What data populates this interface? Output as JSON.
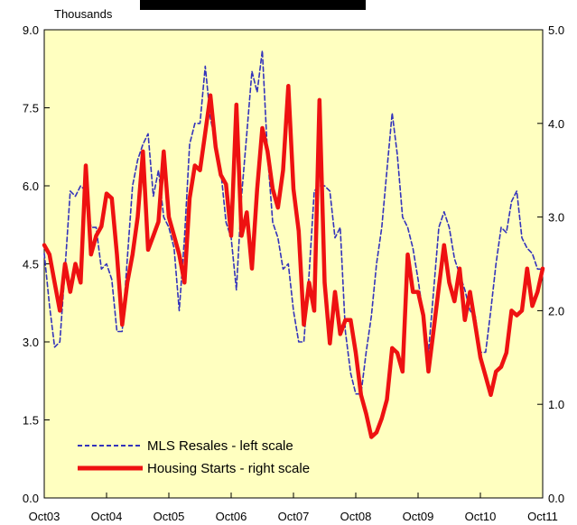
{
  "chart_data": {
    "type": "line",
    "left_axis_unit_label": "Thousands",
    "left_axis": {
      "min": 0,
      "max": 9,
      "ticks": [
        "0.0",
        "1.5",
        "3.0",
        "4.5",
        "6.0",
        "7.5",
        "9.0"
      ]
    },
    "right_axis": {
      "min": 0,
      "max": 5,
      "ticks": [
        "0.0",
        "1.0",
        "2.0",
        "3.0",
        "4.0",
        "5.0"
      ]
    },
    "x_ticks": [
      "Oct03",
      "Oct04",
      "Oct05",
      "Oct06",
      "Oct07",
      "Oct08",
      "Oct09",
      "Oct10",
      "Oct11"
    ],
    "x_start": "Oct03",
    "x_end": "Oct11",
    "plot_background": "#ffffc0",
    "legend_position": "bottom-left",
    "series": [
      {
        "name": "MLS Resales - left scale",
        "axis": "left",
        "color": "#3333bb",
        "style": "dashed",
        "points": [
          [
            "Oct03",
            4.7
          ],
          [
            "Nov03",
            3.7
          ],
          [
            "Dec03",
            2.9
          ],
          [
            "Jan04",
            3.0
          ],
          [
            "Feb04",
            4.4
          ],
          [
            "Mar04",
            5.9
          ],
          [
            "Apr04",
            5.8
          ],
          [
            "May04",
            6.0
          ],
          [
            "Jun04",
            5.9
          ],
          [
            "Jul04",
            5.2
          ],
          [
            "Aug04",
            5.2
          ],
          [
            "Sep04",
            4.4
          ],
          [
            "Oct04",
            4.5
          ],
          [
            "Nov04",
            4.2
          ],
          [
            "Dec04",
            3.2
          ],
          [
            "Jan05",
            3.2
          ],
          [
            "Feb05",
            4.6
          ],
          [
            "Mar05",
            6.0
          ],
          [
            "Apr05",
            6.5
          ],
          [
            "May05",
            6.8
          ],
          [
            "Jun05",
            7.0
          ],
          [
            "Jul05",
            5.8
          ],
          [
            "Aug05",
            6.3
          ],
          [
            "Sep05",
            5.4
          ],
          [
            "Oct05",
            5.2
          ],
          [
            "Nov05",
            4.8
          ],
          [
            "Dec05",
            3.6
          ],
          [
            "Jan06",
            5.0
          ],
          [
            "Feb06",
            6.8
          ],
          [
            "Mar06",
            7.2
          ],
          [
            "Apr06",
            7.2
          ],
          [
            "May06",
            8.3
          ],
          [
            "Jun06",
            7.3
          ],
          [
            "Jul06",
            6.8
          ],
          [
            "Aug06",
            6.3
          ],
          [
            "Sep06",
            5.3
          ],
          [
            "Oct06",
            5.0
          ],
          [
            "Nov06",
            4.0
          ],
          [
            "Dec06",
            5.8
          ],
          [
            "Jan07",
            7.0
          ],
          [
            "Feb07",
            8.2
          ],
          [
            "Mar07",
            7.8
          ],
          [
            "Apr07",
            8.6
          ],
          [
            "May07",
            6.6
          ],
          [
            "Jun07",
            5.3
          ],
          [
            "Jul07",
            5.0
          ],
          [
            "Aug07",
            4.4
          ],
          [
            "Sep07",
            4.5
          ],
          [
            "Oct07",
            3.6
          ],
          [
            "Nov07",
            3.0
          ],
          [
            "Dec07",
            3.0
          ],
          [
            "Jan08",
            4.3
          ],
          [
            "Feb08",
            5.9
          ],
          [
            "Mar08",
            6.0
          ],
          [
            "Apr08",
            6.0
          ],
          [
            "May08",
            5.9
          ],
          [
            "Jun08",
            5.0
          ],
          [
            "Jul08",
            5.2
          ],
          [
            "Aug08",
            3.2
          ],
          [
            "Sep08",
            2.4
          ],
          [
            "Oct08",
            2.0
          ],
          [
            "Nov08",
            2.0
          ],
          [
            "Dec08",
            2.8
          ],
          [
            "Jan09",
            3.5
          ],
          [
            "Feb09",
            4.5
          ],
          [
            "Mar09",
            5.2
          ],
          [
            "Apr09",
            6.3
          ],
          [
            "May09",
            7.4
          ],
          [
            "Jun09",
            6.6
          ],
          [
            "Jul09",
            5.4
          ],
          [
            "Aug09",
            5.2
          ],
          [
            "Sep09",
            4.8
          ],
          [
            "Oct09",
            4.2
          ],
          [
            "Nov09",
            3.5
          ],
          [
            "Dec09",
            2.8
          ],
          [
            "Jan10",
            4.0
          ],
          [
            "Feb10",
            5.2
          ],
          [
            "Mar10",
            5.5
          ],
          [
            "Apr10",
            5.2
          ],
          [
            "May10",
            4.6
          ],
          [
            "Jun10",
            4.3
          ],
          [
            "Jul10",
            4.0
          ],
          [
            "Aug10",
            3.6
          ],
          [
            "Sep10",
            3.5
          ],
          [
            "Oct10",
            2.8
          ],
          [
            "Nov10",
            2.8
          ],
          [
            "Dec10",
            3.6
          ],
          [
            "Jan11",
            4.5
          ],
          [
            "Feb11",
            5.2
          ],
          [
            "Mar11",
            5.1
          ],
          [
            "Apr11",
            5.7
          ],
          [
            "May11",
            5.9
          ],
          [
            "Jun11",
            5.0
          ],
          [
            "Jul11",
            4.8
          ],
          [
            "Aug11",
            4.7
          ],
          [
            "Sep11",
            4.4
          ],
          [
            "Oct11",
            4.4
          ]
        ]
      },
      {
        "name": "Housing Starts - right scale",
        "axis": "right",
        "color": "#ee1111",
        "style": "solid",
        "points": [
          [
            "Oct03",
            2.7
          ],
          [
            "Nov03",
            2.6
          ],
          [
            "Dec03",
            2.3
          ],
          [
            "Jan04",
            2.0
          ],
          [
            "Feb04",
            2.5
          ],
          [
            "Mar04",
            2.2
          ],
          [
            "Apr04",
            2.5
          ],
          [
            "May04",
            2.3
          ],
          [
            "Jun04",
            3.55
          ],
          [
            "Jul04",
            2.6
          ],
          [
            "Aug04",
            2.8
          ],
          [
            "Sep04",
            2.9
          ],
          [
            "Oct04",
            3.25
          ],
          [
            "Nov04",
            3.2
          ],
          [
            "Dec04",
            2.6
          ],
          [
            "Jan05",
            1.85
          ],
          [
            "Feb05",
            2.3
          ],
          [
            "Mar05",
            2.6
          ],
          [
            "Apr05",
            3.0
          ],
          [
            "May05",
            3.7
          ],
          [
            "Jun05",
            2.65
          ],
          [
            "Jul05",
            2.8
          ],
          [
            "Aug05",
            2.95
          ],
          [
            "Sep05",
            3.7
          ],
          [
            "Oct05",
            3.0
          ],
          [
            "Nov05",
            2.8
          ],
          [
            "Dec05",
            2.6
          ],
          [
            "Jan06",
            2.3
          ],
          [
            "Feb06",
            3.2
          ],
          [
            "Mar06",
            3.55
          ],
          [
            "Apr06",
            3.5
          ],
          [
            "May06",
            3.9
          ],
          [
            "Jun06",
            4.3
          ],
          [
            "Jul06",
            3.75
          ],
          [
            "Aug06",
            3.45
          ],
          [
            "Sep06",
            3.35
          ],
          [
            "Oct06",
            2.8
          ],
          [
            "Nov06",
            4.2
          ],
          [
            "Dec06",
            2.8
          ],
          [
            "Jan07",
            3.05
          ],
          [
            "Feb07",
            2.45
          ],
          [
            "Mar07",
            3.3
          ],
          [
            "Apr07",
            3.95
          ],
          [
            "May07",
            3.7
          ],
          [
            "Jun07",
            3.3
          ],
          [
            "Jul07",
            3.1
          ],
          [
            "Aug07",
            3.5
          ],
          [
            "Sep07",
            4.4
          ],
          [
            "Oct07",
            3.3
          ],
          [
            "Nov07",
            2.85
          ],
          [
            "Dec07",
            1.85
          ],
          [
            "Jan08",
            2.3
          ],
          [
            "Feb08",
            2.0
          ],
          [
            "Mar08",
            4.25
          ],
          [
            "Apr08",
            2.3
          ],
          [
            "May08",
            1.65
          ],
          [
            "Jun08",
            2.2
          ],
          [
            "Jul08",
            1.75
          ],
          [
            "Aug08",
            1.9
          ],
          [
            "Sep08",
            1.9
          ],
          [
            "Oct08",
            1.55
          ],
          [
            "Nov08",
            1.1
          ],
          [
            "Dec08",
            0.9
          ],
          [
            "Jan09",
            0.65
          ],
          [
            "Feb09",
            0.7
          ],
          [
            "Mar09",
            0.85
          ],
          [
            "Apr09",
            1.05
          ],
          [
            "May09",
            1.6
          ],
          [
            "Jun09",
            1.55
          ],
          [
            "Jul09",
            1.35
          ],
          [
            "Aug09",
            2.6
          ],
          [
            "Sep09",
            2.2
          ],
          [
            "Oct09",
            2.2
          ],
          [
            "Nov09",
            1.95
          ],
          [
            "Dec09",
            1.35
          ],
          [
            "Jan10",
            1.8
          ],
          [
            "Feb10",
            2.25
          ],
          [
            "Mar10",
            2.7
          ],
          [
            "Apr10",
            2.3
          ],
          [
            "May10",
            2.1
          ],
          [
            "Jun10",
            2.45
          ],
          [
            "Jul10",
            1.9
          ],
          [
            "Aug10",
            2.2
          ],
          [
            "Sep10",
            1.85
          ],
          [
            "Oct10",
            1.5
          ],
          [
            "Nov10",
            1.3
          ],
          [
            "Dec10",
            1.1
          ],
          [
            "Jan11",
            1.35
          ],
          [
            "Feb11",
            1.4
          ],
          [
            "Mar11",
            1.55
          ],
          [
            "Apr11",
            2.0
          ],
          [
            "May11",
            1.95
          ],
          [
            "Jun11",
            2.0
          ],
          [
            "Jul11",
            2.45
          ],
          [
            "Aug11",
            2.05
          ],
          [
            "Sep11",
            2.2
          ],
          [
            "Oct11",
            2.45
          ]
        ]
      }
    ]
  }
}
